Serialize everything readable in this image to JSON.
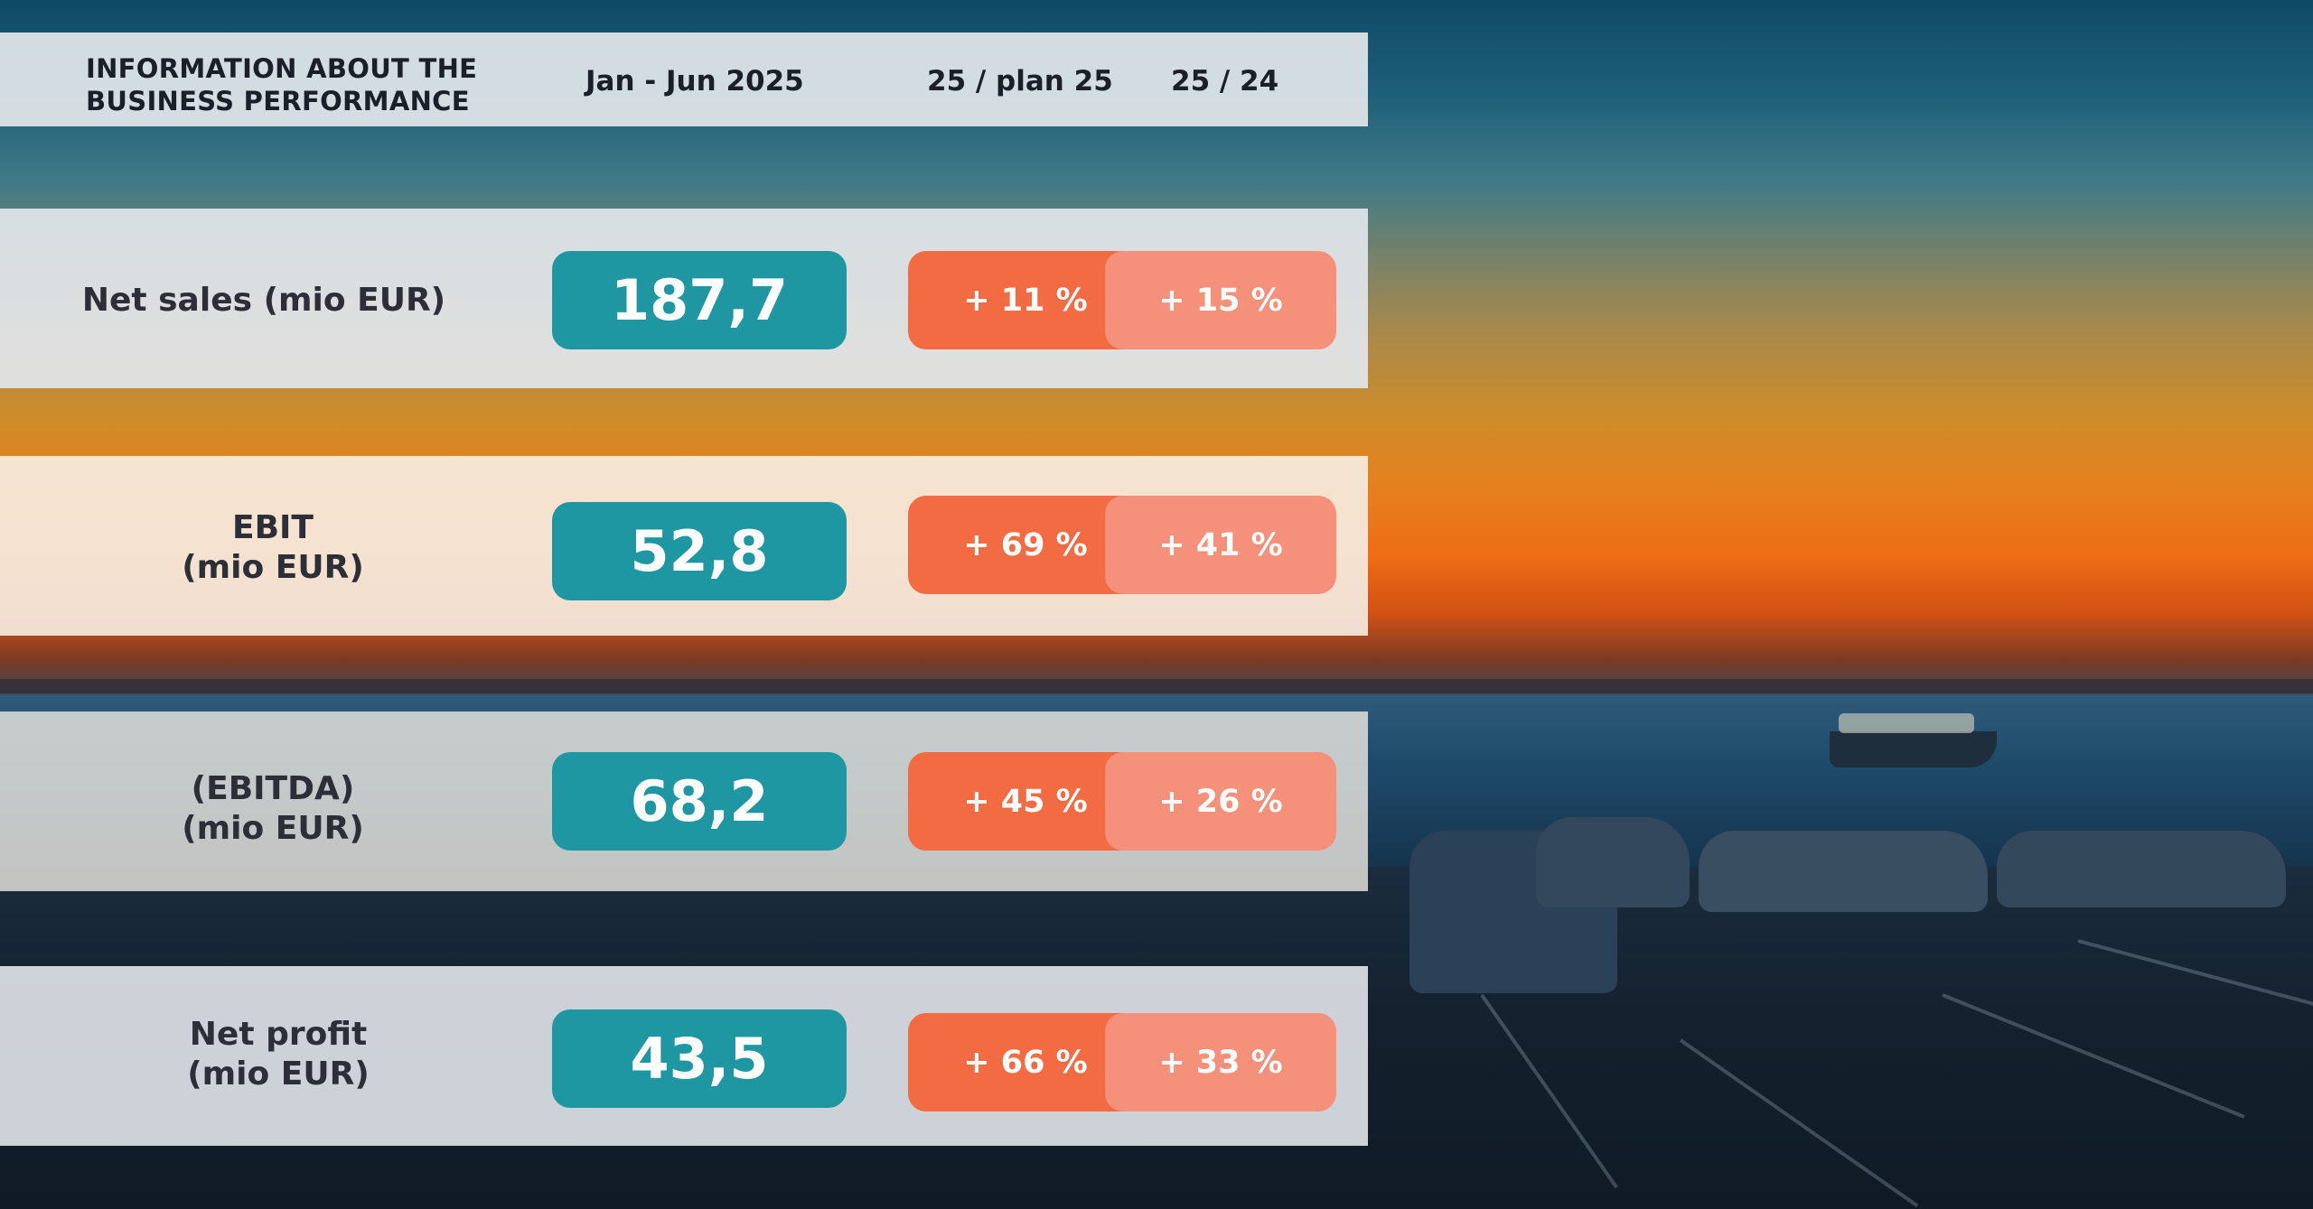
{
  "header": {
    "title_line1": "INFORMATION ABOUT THE",
    "title_line2": "BUSINESS PERFORMANCE",
    "col_period": "Jan - Jun 2025",
    "col_vs_plan": "25 / plan 25",
    "col_vs_prev": "25 / 24"
  },
  "rows": [
    {
      "label_line1": "Net sales (mio EUR)",
      "label_line2": "",
      "value": "187,7",
      "vs_plan": "+ 11 %",
      "vs_prev": "+ 15 %"
    },
    {
      "label_line1": "EBIT",
      "label_line2": "(mio EUR)",
      "value": "52,8",
      "vs_plan": "+ 69 %",
      "vs_prev": "+ 41 %"
    },
    {
      "label_line1": "(EBITDA)",
      "label_line2": "(mio EUR)",
      "value": "68,2",
      "vs_plan": "+ 45 %",
      "vs_prev": "+ 26 %"
    },
    {
      "label_line1": "Net profit",
      "label_line2": "(mio EUR)",
      "value": "43,5",
      "vs_plan": "+ 66 %",
      "vs_prev": "+ 33 %"
    }
  ],
  "colors": {
    "value_badge": "#1e97a2",
    "vs_plan_badge": "#f26b43",
    "vs_prev_badge": "#f5907a"
  }
}
